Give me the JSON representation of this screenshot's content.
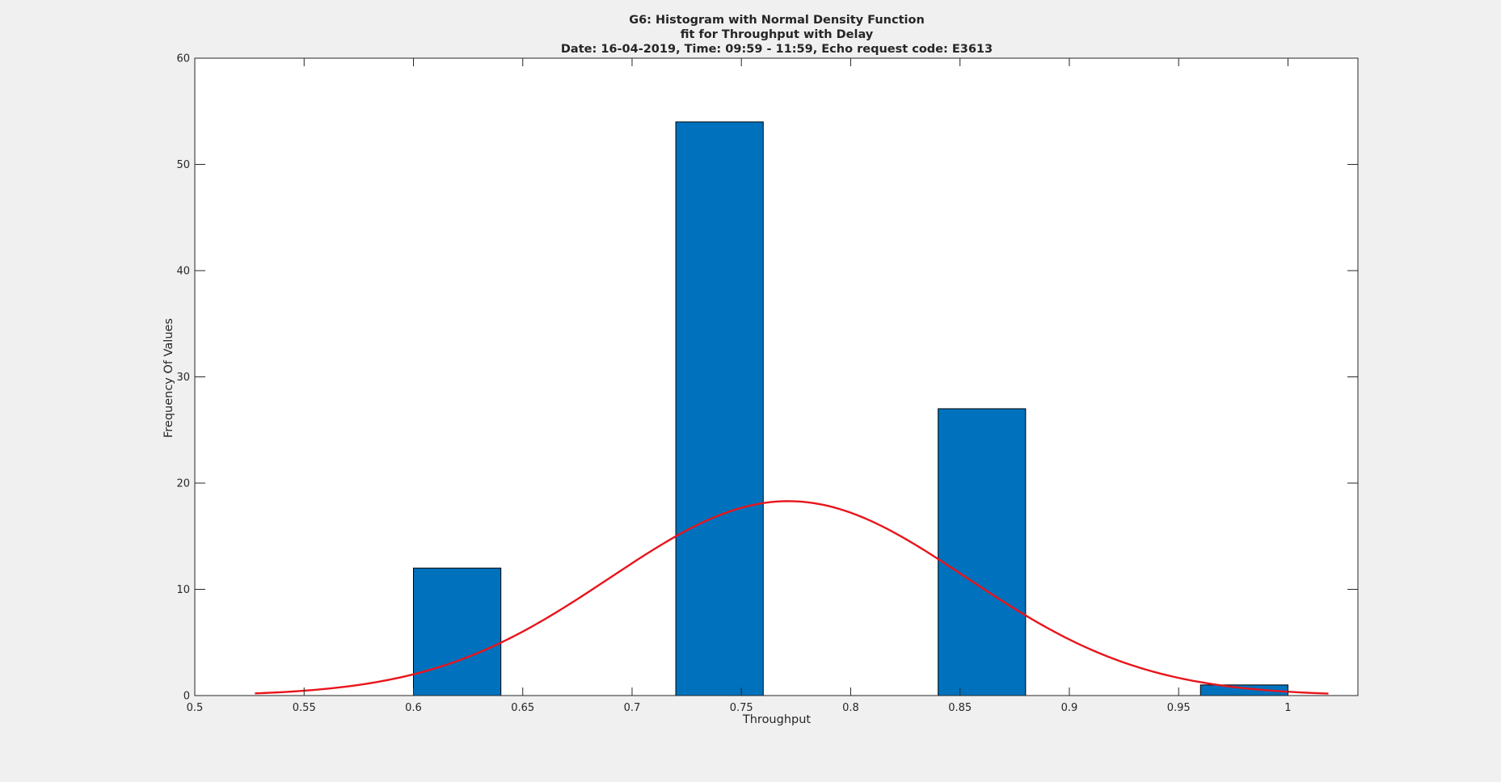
{
  "chart_data": {
    "type": "bar",
    "title": [
      "G6: Histogram with Normal Density Function",
      "fit for Throughput with Delay",
      "Date: 16-04-2019, Time: 09:59 - 11:59, Echo request code: E3613"
    ],
    "xlabel": "Throughput",
    "ylabel": "Frequency Of Values",
    "xlim": [
      0.5,
      1.032
    ],
    "ylim": [
      0,
      60
    ],
    "xticks": [
      0.5,
      0.55,
      0.6,
      0.65,
      0.7,
      0.75,
      0.8,
      0.85,
      0.9,
      0.95,
      1
    ],
    "xtick_labels": [
      "0.5",
      "0.55",
      "0.6",
      "0.65",
      "0.7",
      "0.75",
      "0.8",
      "0.85",
      "0.9",
      "0.95",
      "1"
    ],
    "yticks": [
      0,
      10,
      20,
      30,
      40,
      50,
      60
    ],
    "ytick_labels": [
      "0",
      "10",
      "20",
      "30",
      "40",
      "50",
      "60"
    ],
    "grid": false,
    "bins": [
      {
        "start": 0.6,
        "end": 0.64,
        "count": 12
      },
      {
        "start": 0.72,
        "end": 0.76,
        "count": 54
      },
      {
        "start": 0.84,
        "end": 0.88,
        "count": 27
      },
      {
        "start": 0.96,
        "end": 1.0,
        "count": 1
      }
    ],
    "fit_curve": {
      "distribution": "normal",
      "mean": 0.7715,
      "std": 0.0815,
      "peak": 18.3,
      "x_range": [
        0.5275,
        1.0185
      ]
    },
    "colors": {
      "bar_fill": "#0072bd",
      "bar_edge": "#000000",
      "curve": "#e8141b",
      "axes_bg": "#ffffff",
      "figure_bg": "#f0f0f0"
    }
  }
}
